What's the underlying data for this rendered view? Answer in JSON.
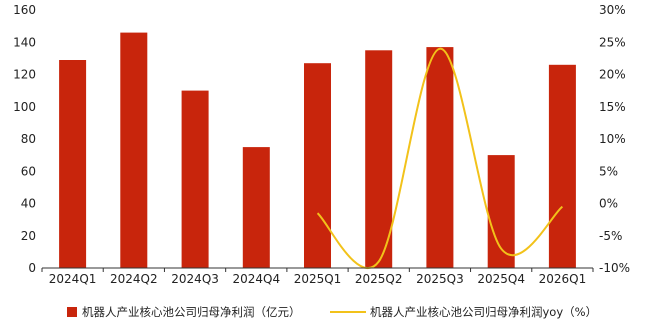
{
  "chart_data": {
    "type": "bar",
    "categories": [
      "2024Q1",
      "2024Q2",
      "2024Q3",
      "2024Q4",
      "2025Q1",
      "2025Q2",
      "2025Q3",
      "2025Q4",
      "2026Q1"
    ],
    "series": [
      {
        "name": "机器人产业核心池公司归母净利润（亿元）",
        "type": "bar",
        "axis": "left",
        "color": "#c8250c",
        "values": [
          129,
          146,
          110,
          75,
          127,
          135,
          137,
          70,
          126
        ]
      },
      {
        "name": "机器人产业核心池公司归母净利润yoy（%）",
        "type": "line",
        "axis": "right",
        "color": "#f2c21a",
        "x": [
          "2025Q1",
          "2025Q2",
          "2025Q3",
          "2025Q4",
          "2026Q1"
        ],
        "values": [
          -1.5,
          -9,
          24,
          -7,
          -0.5
        ]
      }
    ],
    "y_left": {
      "ylim": [
        0,
        160
      ],
      "ticks": [
        "0",
        "20",
        "40",
        "60",
        "80",
        "100",
        "120",
        "140",
        "160"
      ]
    },
    "y_right": {
      "ylim": [
        -10,
        30
      ],
      "ticks": [
        "-10%",
        "-5%",
        "0%",
        "5%",
        "10%",
        "15%",
        "20%",
        "25%",
        "30%"
      ]
    },
    "grid": false,
    "legend_position": "bottom"
  }
}
